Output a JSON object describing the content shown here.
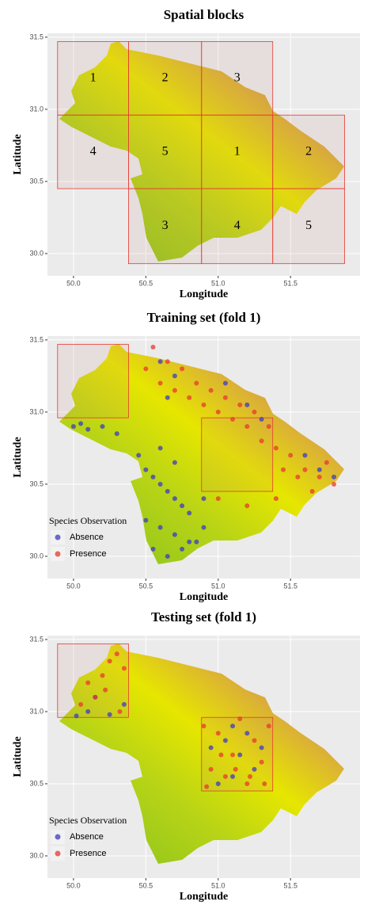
{
  "chart_data": [
    {
      "type": "scatter",
      "title": "Spatial blocks",
      "x_label": "Longitude",
      "y_label": "Latitude",
      "xlim": [
        49.82,
        51.98
      ],
      "ylim": [
        29.846,
        31.527
      ],
      "xticks": [
        {
          "value": 50,
          "label": "50.0"
        },
        50.5,
        {
          "value": 51,
          "label": "51.0"
        },
        51.5
      ],
      "yticks": [
        {
          "value": 30,
          "label": "30.0"
        },
        30.5,
        {
          "value": 31,
          "label": "31.0"
        },
        31.5
      ],
      "grid": true,
      "blocks": [
        {
          "label": "1",
          "xlim": [
            49.89,
            50.38
          ],
          "ylim": [
            30.96,
            31.47
          ]
        },
        {
          "label": "2",
          "xlim": [
            50.38,
            50.885
          ],
          "ylim": [
            30.96,
            31.47
          ]
        },
        {
          "label": "3",
          "xlim": [
            50.885,
            51.377
          ],
          "ylim": [
            30.96,
            31.47
          ]
        },
        {
          "label": "4",
          "xlim": [
            49.89,
            50.38
          ],
          "ylim": [
            30.45,
            30.96
          ]
        },
        {
          "label": "5",
          "xlim": [
            50.38,
            50.885
          ],
          "ylim": [
            30.45,
            30.96
          ]
        },
        {
          "label": "1",
          "xlim": [
            50.885,
            51.377
          ],
          "ylim": [
            30.45,
            30.96
          ]
        },
        {
          "label": "2",
          "xlim": [
            51.377,
            51.874
          ],
          "ylim": [
            30.45,
            30.96
          ]
        },
        {
          "label": "3",
          "xlim": [
            50.38,
            50.885
          ],
          "ylim": [
            29.93,
            30.45
          ]
        },
        {
          "label": "4",
          "xlim": [
            50.885,
            51.377
          ],
          "ylim": [
            29.93,
            30.45
          ]
        },
        {
          "label": "5",
          "xlim": [
            51.377,
            51.874
          ],
          "ylim": [
            29.93,
            30.45
          ]
        }
      ],
      "series": []
    },
    {
      "type": "scatter",
      "title": "Training set (fold 1)",
      "x_label": "Longitude",
      "y_label": "Latitude",
      "xlim": [
        49.82,
        51.98
      ],
      "ylim": [
        29.846,
        31.527
      ],
      "xticks": [
        {
          "value": 50,
          "label": "50.0"
        },
        50.5,
        {
          "value": 51,
          "label": "51.0"
        },
        51.5
      ],
      "yticks": [
        {
          "value": 30,
          "label": "30.0"
        },
        30.5,
        {
          "value": 31,
          "label": "31.0"
        },
        31.5
      ],
      "grid": true,
      "legend_title": "Species Observation",
      "legend": "bottom-left",
      "blocks": [
        {
          "xlim": [
            49.89,
            50.38
          ],
          "ylim": [
            30.96,
            31.47
          ]
        },
        {
          "xlim": [
            50.885,
            51.377
          ],
          "ylim": [
            30.45,
            30.96
          ]
        }
      ],
      "series": [
        {
          "name": "Absence",
          "color": "#3b3bc4",
          "x": [
            50.0,
            50.05,
            50.1,
            50.2,
            50.3,
            50.45,
            50.5,
            50.55,
            50.6,
            50.65,
            50.7,
            50.75,
            50.8,
            50.5,
            50.6,
            50.7,
            50.8,
            50.9,
            50.55,
            50.65,
            50.75,
            50.85,
            50.6,
            50.7,
            51.05,
            51.2,
            51.3,
            51.6,
            51.7,
            51.8,
            50.6,
            50.7,
            50.65,
            50.9
          ],
          "y": [
            30.9,
            30.92,
            30.88,
            30.9,
            30.85,
            30.7,
            30.6,
            30.55,
            30.5,
            30.45,
            30.4,
            30.35,
            30.3,
            30.25,
            30.2,
            30.15,
            30.1,
            30.2,
            30.05,
            30.0,
            30.05,
            30.1,
            31.35,
            31.25,
            31.2,
            31.05,
            30.95,
            30.7,
            30.6,
            30.55,
            30.75,
            30.65,
            31.1,
            30.4
          ]
        },
        {
          "name": "Presence",
          "color": "#e8382f",
          "x": [
            50.5,
            50.6,
            50.7,
            50.8,
            50.9,
            51.0,
            51.1,
            51.2,
            51.3,
            51.4,
            51.5,
            51.6,
            51.7,
            51.8,
            50.55,
            50.65,
            50.75,
            50.85,
            50.95,
            51.05,
            51.15,
            51.25,
            51.35,
            51.45,
            51.55,
            51.65,
            51.75,
            51.0,
            51.2,
            51.4
          ],
          "y": [
            31.3,
            31.2,
            31.15,
            31.1,
            31.05,
            31.0,
            30.95,
            30.9,
            30.8,
            30.75,
            30.7,
            30.6,
            30.55,
            30.5,
            31.45,
            31.35,
            31.3,
            31.2,
            31.15,
            31.1,
            31.05,
            31.0,
            30.9,
            30.6,
            30.55,
            30.45,
            30.65,
            30.4,
            30.35,
            30.4
          ]
        }
      ]
    },
    {
      "type": "scatter",
      "title": "Testing set (fold 1)",
      "x_label": "Longitude",
      "y_label": "Latitude",
      "xlim": [
        49.82,
        51.98
      ],
      "ylim": [
        29.846,
        31.527
      ],
      "xticks": [
        {
          "value": 50,
          "label": "50.0"
        },
        50.5,
        {
          "value": 51,
          "label": "51.0"
        },
        51.5
      ],
      "yticks": [
        {
          "value": 30,
          "label": "30.0"
        },
        30.5,
        {
          "value": 31,
          "label": "31.0"
        },
        31.5
      ],
      "grid": true,
      "legend_title": "Species Observation",
      "legend": "bottom-left",
      "blocks": [
        {
          "xlim": [
            49.89,
            50.38
          ],
          "ylim": [
            30.96,
            31.47
          ]
        },
        {
          "xlim": [
            50.885,
            51.377
          ],
          "ylim": [
            30.45,
            30.96
          ]
        }
      ],
      "series": [
        {
          "name": "Absence",
          "color": "#3b3bc4",
          "x": [
            50.1,
            50.15,
            50.25,
            50.35,
            50.02,
            50.95,
            51.05,
            51.1,
            51.15,
            51.2,
            51.25,
            51.3,
            51.0,
            51.1
          ],
          "y": [
            31.0,
            31.1,
            30.98,
            31.05,
            30.97,
            30.75,
            30.8,
            30.9,
            30.7,
            30.85,
            30.6,
            30.75,
            30.5,
            30.55
          ]
        },
        {
          "name": "Presence",
          "color": "#e8382f",
          "x": [
            50.1,
            50.2,
            50.25,
            50.3,
            50.35,
            50.15,
            50.05,
            50.22,
            50.32,
            50.9,
            50.95,
            51.0,
            51.05,
            51.1,
            51.15,
            51.2,
            51.25,
            51.3,
            51.35,
            50.92,
            51.02,
            51.12,
            51.22,
            51.32
          ],
          "y": [
            31.2,
            31.25,
            31.35,
            31.4,
            31.3,
            31.1,
            31.05,
            31.15,
            31.0,
            30.9,
            30.6,
            30.85,
            30.55,
            30.7,
            30.95,
            30.5,
            30.8,
            30.65,
            30.9,
            30.48,
            30.7,
            30.6,
            30.55,
            30.5
          ]
        }
      ]
    }
  ]
}
